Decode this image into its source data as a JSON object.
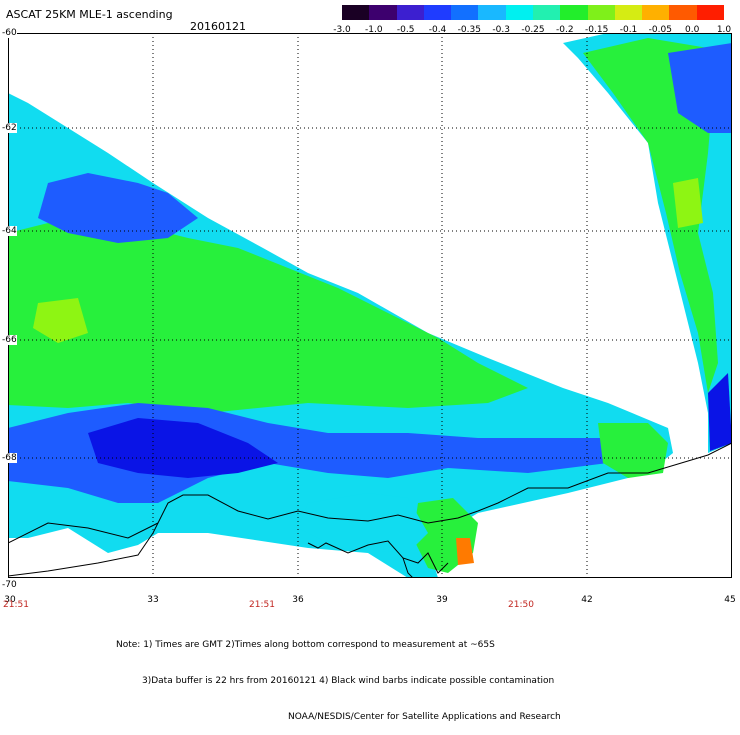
{
  "header": {
    "title": "ASCAT 25KM MLE-1 ascending",
    "date": "20160121"
  },
  "colorbar": {
    "labels": [
      "-3.0",
      "-1.0",
      "-0.5",
      "-0.4",
      "-0.35",
      "-0.3",
      "-0.25",
      "-0.2",
      "-0.15",
      "-0.1",
      "-0.05",
      "0.0",
      "1.0"
    ],
    "colors": [
      "#1a0024",
      "#3d006e",
      "#3c1fd0",
      "#1f3cff",
      "#1270ff",
      "#19b8ff",
      "#00f0f0",
      "#22f0b0",
      "#22ee2b",
      "#7ff01a",
      "#d5ec13",
      "#ffb000",
      "#ff5a00",
      "#ff1e00"
    ]
  },
  "axes": {
    "y_labels": [
      "-60",
      "-62",
      "-64",
      "-66",
      "-68",
      "-70"
    ],
    "x_labels": [
      "30",
      "33",
      "36",
      "39",
      "42",
      "45"
    ],
    "time_labels": [
      "21:51",
      "21:51",
      "21:50"
    ]
  },
  "colors": {
    "blue_dark": "#0a14e6",
    "blue": "#1e5cff",
    "cyan": "#11dcf0",
    "green": "#27f03c",
    "green_yellow": "#8ef513",
    "orange": "#ff7a00",
    "coast": "#000000"
  },
  "notes": [
    "Note: 1) Times are GMT 2)Times along bottom correspond to measurement at ~65S",
    "3)Data buffer is 22 hrs from 20160121 4) Black wind barbs indicate possible contamination",
    "NOAA/NESDIS/Center for Satellite Applications and Research"
  ]
}
